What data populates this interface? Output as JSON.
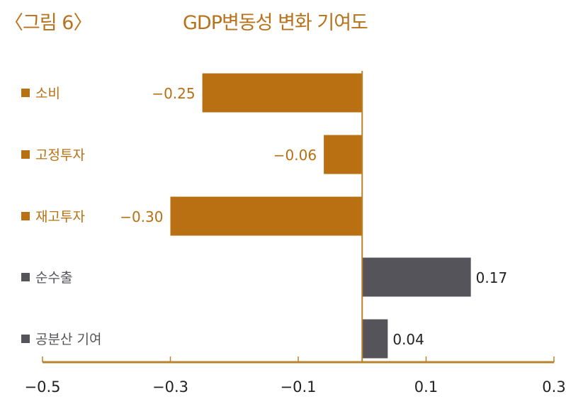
{
  "figure_label": "〈그림 6〉",
  "chart_data": {
    "type": "bar",
    "orientation": "horizontal",
    "title": "GDP변동성 변화 기여도",
    "categories": [
      "소비",
      "고정투자",
      "재고투자",
      "순수출",
      "공분산 기여"
    ],
    "values": [
      -0.25,
      -0.06,
      -0.3,
      0.17,
      0.04
    ],
    "value_labels": [
      "−0.25",
      "−0.06",
      "−0.30",
      "0.17",
      "0.04"
    ],
    "xlim": [
      -0.5,
      0.3
    ],
    "xticks": [
      -0.5,
      -0.3,
      -0.1,
      0.1,
      0.3
    ],
    "xtick_labels": [
      "−0.5",
      "−0.3",
      "−0.1",
      "0.1",
      "0.3"
    ],
    "grid": false,
    "colors": {
      "negative": "#b87012",
      "positive": "#55545a",
      "axis": "#b8832c",
      "title": "#b8721c"
    }
  }
}
